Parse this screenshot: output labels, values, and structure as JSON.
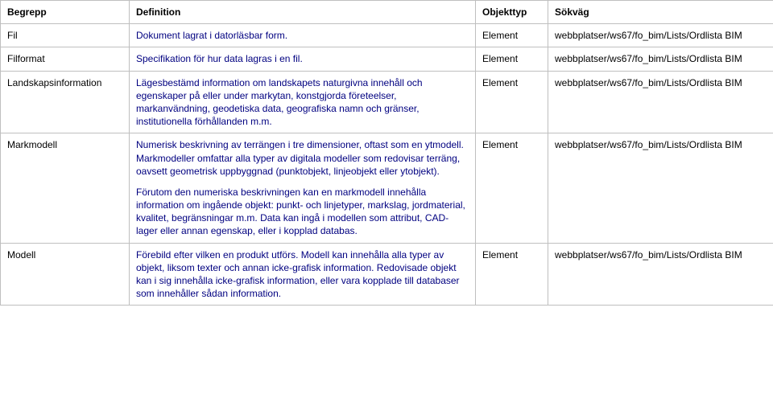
{
  "table": {
    "headers": {
      "col1": "Begrepp",
      "col2": "Definition",
      "col3": "Objekttyp",
      "col4": "Sökväg"
    },
    "rows": [
      {
        "term": "Fil",
        "definition": "Dokument lagrat i datorläsbar form.",
        "objtype": "Element",
        "path": "webbplatser/ws67/fo_bim/Lists/Ordlista BIM"
      },
      {
        "term": "Filformat",
        "definition": "Specifikation för hur data lagras i en fil.",
        "objtype": "Element",
        "path": "webbplatser/ws67/fo_bim/Lists/Ordlista BIM"
      },
      {
        "term": "Landskapsinformation",
        "definition": "Lägesbestämd information om landskapets naturgivna innehåll och egenskaper på eller under markytan, konstgjorda företeelser, markanvändning, geodetiska data, geografiska namn och gränser, institutionella förhållanden m.m.",
        "objtype": "Element",
        "path": "webbplatser/ws67/fo_bim/Lists/Ordlista BIM"
      },
      {
        "term": "Markmodell",
        "definition_p1": "Numerisk beskrivning av terrängen i tre dimensioner, oftast som en ytmodell. Markmodeller omfattar alla typer av digitala modeller som redovisar terräng, oavsett geometrisk uppbyggnad (punktobjekt, linjeobjekt eller ytobjekt).",
        "definition_p2": " Förutom den numeriska beskrivningen kan en markmodell innehålla information om ingående objekt: punkt- och linjetyper, markslag, jordmaterial, kvalitet, begränsningar m.m. Data kan ingå i modellen som attribut, CAD-lager eller annan egenskap, eller i kopplad databas.",
        "objtype": "Element",
        "path": "webbplatser/ws67/fo_bim/Lists/Ordlista BIM"
      },
      {
        "term": "Modell",
        "definition": "Förebild efter vilken en produkt utförs. Modell kan innehålla alla typer av objekt, liksom texter och annan icke-grafisk information. Redovisade objekt kan i sig innehålla icke-grafisk information, eller vara kopplade till databaser som innehåller sådan information.",
        "objtype": "Element",
        "path": "webbplatser/ws67/fo_bim/Lists/Ordlista BIM"
      }
    ]
  },
  "colors": {
    "border": "#bfbfbf",
    "definition_text": "#000080",
    "text": "#000000",
    "background": "#ffffff"
  }
}
